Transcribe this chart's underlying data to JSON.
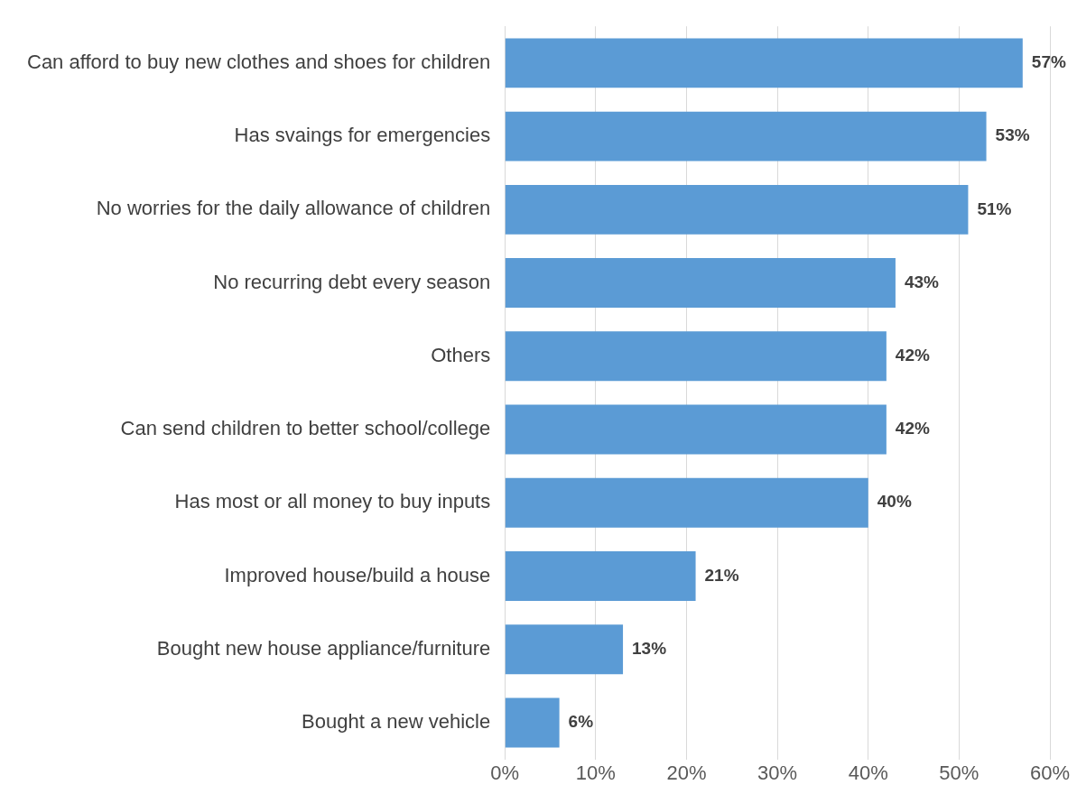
{
  "chart_data": {
    "type": "bar",
    "orientation": "horizontal",
    "categories": [
      "Can afford to buy new clothes and shoes for children",
      "Has svaings for emergencies",
      "No worries for the daily allowance of children",
      "No recurring debt every season",
      "Others",
      "Can send children to better school/college",
      "Has most or all money to buy inputs",
      "Improved house/build a house",
      "Bought new house appliance/furniture",
      "Bought a new vehicle"
    ],
    "values": [
      57,
      53,
      51,
      43,
      42,
      42,
      40,
      21,
      13,
      6
    ],
    "value_labels": [
      "57%",
      "53%",
      "51%",
      "43%",
      "42%",
      "42%",
      "40%",
      "21%",
      "13%",
      "6%"
    ],
    "color": "#5b9bd5",
    "xlim": [
      0,
      60
    ],
    "xticks": [
      {
        "value": 0,
        "label": "0%"
      },
      {
        "value": 10,
        "label": "10%"
      },
      {
        "value": 20,
        "label": "20%"
      },
      {
        "value": 30,
        "label": "30%"
      },
      {
        "value": 40,
        "label": "40%"
      },
      {
        "value": 50,
        "label": "50%"
      },
      {
        "value": 60,
        "label": "60%"
      }
    ],
    "grid": "x"
  }
}
